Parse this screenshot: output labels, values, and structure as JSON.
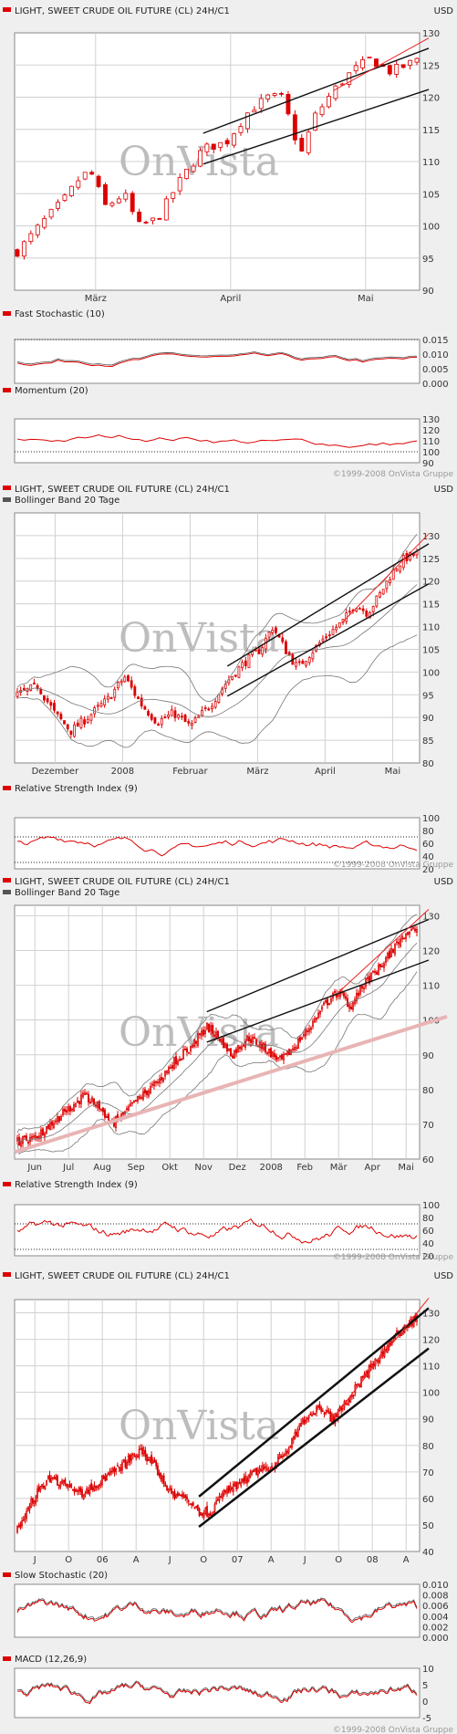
{
  "copyright": "©1999-2008 OnVista Gruppe",
  "watermark": "OnVista",
  "colors": {
    "candle": "#dd0000",
    "indicator": "#dd0000",
    "signal": "#555555",
    "trend_black": "#111111",
    "trend_red": "#ee2222",
    "trend_pink": "#e8b4b4",
    "bollinger": "#777777"
  },
  "chart_data": [
    {
      "type": "candlestick",
      "title": "LIGHT, SWEET CRUDE OIL FUTURE (CL) 24H/C1",
      "currency": "USD",
      "x_labels": [
        "März",
        "April",
        "Mai"
      ],
      "y_ticks": [
        90,
        95,
        100,
        105,
        110,
        115,
        120,
        125,
        130
      ],
      "ylim": [
        90,
        130
      ],
      "path": [
        [
          0,
          96
        ],
        [
          6,
          101
        ],
        [
          10,
          104
        ],
        [
          14,
          108
        ],
        [
          16,
          108
        ],
        [
          19,
          103
        ],
        [
          23,
          105
        ],
        [
          26,
          100
        ],
        [
          30,
          101
        ],
        [
          35,
          107
        ],
        [
          40,
          112
        ],
        [
          45,
          113
        ],
        [
          50,
          118
        ],
        [
          54,
          120
        ],
        [
          57,
          120
        ],
        [
          61,
          111
        ],
        [
          64,
          117
        ],
        [
          68,
          121
        ],
        [
          72,
          124
        ],
        [
          76,
          126
        ],
        [
          80,
          124
        ],
        [
          84,
          125
        ],
        [
          86,
          126
        ]
      ],
      "indicators": [
        {
          "name": "Fast Stochastic (10)",
          "y_ticks": [
            "0.015",
            "0.010",
            "0.005",
            "0.000"
          ],
          "ylim": [
            0,
            0.015
          ],
          "ref": [
            0.015
          ]
        },
        {
          "name": "Momentum (20)",
          "y_ticks": [
            130,
            120,
            110,
            100,
            90
          ],
          "ylim": [
            90,
            130
          ],
          "ref": [
            100
          ]
        }
      ]
    },
    {
      "type": "candlestick",
      "title": "LIGHT, SWEET CRUDE OIL FUTURE (CL) 24H/C1",
      "legend": "Bollinger Band 20 Tage",
      "currency": "USD",
      "x_labels": [
        "Dezember",
        "2008",
        "Februar",
        "März",
        "April",
        "Mai"
      ],
      "y_ticks": [
        80,
        85,
        90,
        95,
        100,
        105,
        110,
        115,
        120,
        125,
        130
      ],
      "ylim": [
        80,
        135
      ],
      "path": [
        [
          0,
          95
        ],
        [
          5,
          97
        ],
        [
          9,
          91
        ],
        [
          13,
          87
        ],
        [
          17,
          90
        ],
        [
          22,
          94
        ],
        [
          26,
          99
        ],
        [
          30,
          93
        ],
        [
          34,
          89
        ],
        [
          38,
          91
        ],
        [
          42,
          88
        ],
        [
          47,
          93
        ],
        [
          51,
          98
        ],
        [
          55,
          102
        ],
        [
          59,
          105
        ],
        [
          62,
          110
        ],
        [
          65,
          105
        ],
        [
          68,
          101
        ],
        [
          71,
          104
        ],
        [
          75,
          108
        ],
        [
          79,
          111
        ],
        [
          82,
          115
        ],
        [
          85,
          113
        ],
        [
          88,
          117
        ],
        [
          91,
          122
        ],
        [
          94,
          125
        ],
        [
          97,
          126
        ]
      ],
      "indicators": [
        {
          "name": "Relative Strength Index (9)",
          "y_ticks": [
            100,
            80,
            60,
            40,
            20
          ],
          "ylim": [
            20,
            100
          ],
          "ref": [
            70,
            30
          ]
        }
      ]
    },
    {
      "type": "candlestick",
      "title": "LIGHT, SWEET CRUDE OIL FUTURE (CL) 24H/C1",
      "legend": "Bollinger Band 20 Tage",
      "currency": "USD",
      "x_labels": [
        "Jun",
        "Jul",
        "Aug",
        "Sep",
        "Okt",
        "Nov",
        "Dez",
        "2008",
        "Feb",
        "Mär",
        "Apr",
        "Mai"
      ],
      "y_ticks": [
        60,
        70,
        80,
        90,
        100,
        110,
        120,
        130
      ],
      "ylim": [
        60,
        133
      ],
      "path": [
        [
          0,
          65
        ],
        [
          4,
          66
        ],
        [
          8,
          70
        ],
        [
          12,
          74
        ],
        [
          16,
          78
        ],
        [
          20,
          75
        ],
        [
          23,
          70
        ],
        [
          26,
          73
        ],
        [
          30,
          78
        ],
        [
          34,
          82
        ],
        [
          38,
          88
        ],
        [
          42,
          92
        ],
        [
          46,
          98
        ],
        [
          49,
          95
        ],
        [
          52,
          90
        ],
        [
          56,
          95
        ],
        [
          60,
          92
        ],
        [
          64,
          88
        ],
        [
          67,
          92
        ],
        [
          71,
          98
        ],
        [
          75,
          105
        ],
        [
          78,
          108
        ],
        [
          81,
          104
        ],
        [
          84,
          110
        ],
        [
          88,
          115
        ],
        [
          91,
          120
        ],
        [
          94,
          125
        ],
        [
          97,
          126
        ]
      ],
      "indicators": [
        {
          "name": "Relative Strength Index (9)",
          "y_ticks": [
            100,
            80,
            60,
            40,
            20
          ],
          "ylim": [
            20,
            100
          ],
          "ref": [
            70,
            30
          ]
        }
      ]
    },
    {
      "type": "candlestick",
      "title": "LIGHT, SWEET CRUDE OIL FUTURE (CL) 24H/C1",
      "currency": "USD",
      "x_labels": [
        "J",
        "O",
        "06",
        "A",
        "J",
        "O",
        "07",
        "A",
        "J",
        "O",
        "08",
        "A"
      ],
      "y_ticks": [
        40,
        50,
        60,
        70,
        80,
        90,
        100,
        110,
        120,
        130
      ],
      "ylim": [
        40,
        135
      ],
      "path": [
        [
          0,
          48
        ],
        [
          4,
          60
        ],
        [
          8,
          68
        ],
        [
          12,
          65
        ],
        [
          16,
          62
        ],
        [
          20,
          66
        ],
        [
          24,
          70
        ],
        [
          28,
          75
        ],
        [
          31,
          78
        ],
        [
          34,
          72
        ],
        [
          38,
          62
        ],
        [
          42,
          60
        ],
        [
          45,
          55
        ],
        [
          48,
          55
        ],
        [
          51,
          62
        ],
        [
          55,
          65
        ],
        [
          59,
          70
        ],
        [
          63,
          72
        ],
        [
          67,
          78
        ],
        [
          71,
          90
        ],
        [
          75,
          95
        ],
        [
          78,
          90
        ],
        [
          81,
          95
        ],
        [
          84,
          102
        ],
        [
          88,
          110
        ],
        [
          92,
          118
        ],
        [
          96,
          125
        ],
        [
          99,
          128
        ]
      ],
      "indicators": [
        {
          "name": "Slow Stochastic (20)",
          "y_ticks": [
            "0.010",
            "0.008",
            "0.006",
            "0.004",
            "0.002",
            "0.000"
          ],
          "ylim": [
            0,
            0.01
          ],
          "ref": []
        },
        {
          "name": "MACD (12,26,9)",
          "y_ticks": [
            10,
            5,
            0,
            -5
          ],
          "ylim": [
            -5,
            10
          ],
          "ref": []
        }
      ]
    }
  ]
}
